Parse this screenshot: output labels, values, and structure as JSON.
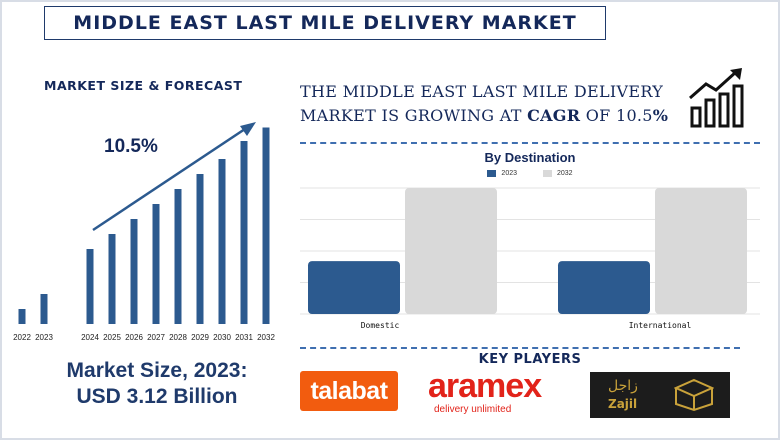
{
  "title": "MIDDLE EAST LAST MILE DELIVERY MARKET",
  "forecast": {
    "heading": "MARKET SIZE & FORECAST",
    "cagr_label": "10.5%"
  },
  "market_size": {
    "line1": "Market Size, 2023:",
    "line2": "USD 3.12 Billion"
  },
  "cagr_statement": {
    "line1": "THE MIDDLE EAST LAST MILE DELIVERY",
    "line2_prefix": "MARKET IS GROWING AT ",
    "line2_cagr": "CAGR",
    "line2_of": " OF  10.5",
    "line2_pct": "%"
  },
  "icons": {
    "growth": "growth-chart-icon",
    "arrow": "trend-arrow-icon"
  },
  "colors": {
    "navy": "#14285a",
    "bar_blue": "#2c5a8f",
    "bar_gray": "#d9d9d9",
    "talabat_orange": "#f25c0f",
    "aramex_red": "#e2231a",
    "zajil_gold": "#c9a23a"
  },
  "key_players": {
    "heading": "KEY PLAYERS",
    "talabat": "talabat",
    "aramex": "aramex",
    "aramex_tagline": "delivery unlimited",
    "zajil_arabic": "زاجل",
    "zajil_latin": "Zajil"
  },
  "chart_data": [
    {
      "type": "bar",
      "title": "MARKET SIZE & FORECAST",
      "categories": [
        "2022",
        "2023",
        "2024",
        "2025",
        "2026",
        "2027",
        "2028",
        "2029",
        "2030",
        "2031",
        "2032"
      ],
      "values": [
        1.0,
        2.0,
        5.0,
        6.0,
        7.0,
        8.0,
        9.0,
        10.0,
        11.0,
        12.2,
        13.1
      ],
      "gap_after_index": 1,
      "annotation": "10.5%",
      "grid": false,
      "legend": "none"
    },
    {
      "type": "bar",
      "title": "By Destination",
      "categories": [
        "Domestic",
        "International"
      ],
      "series": [
        {
          "name": "2023",
          "values": [
            42,
            42
          ]
        },
        {
          "name": "2032",
          "values": [
            100,
            100
          ]
        }
      ],
      "ylim": [
        0,
        100
      ],
      "grid": true,
      "legend": "top-center"
    }
  ]
}
